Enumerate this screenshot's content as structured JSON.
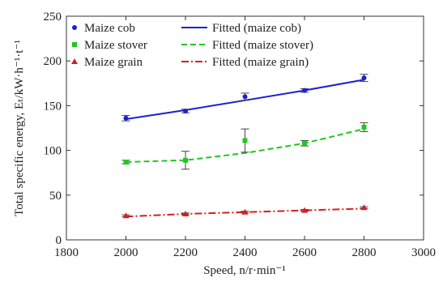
{
  "chart_data": {
    "type": "scatter",
    "xlabel": "Speed, n/r·min⁻¹",
    "ylabel": "Total specific energy, Eₜ/kW·h⁻¹·t⁻¹",
    "xlim": [
      1800,
      3000
    ],
    "ylim": [
      0,
      250
    ],
    "xticks": [
      "1800",
      "2000",
      "2200",
      "2400",
      "2600",
      "2800",
      "3000"
    ],
    "yticks": [
      "0",
      "50",
      "100",
      "150",
      "200",
      "250"
    ],
    "grid": false,
    "legend": "top-left",
    "series": [
      {
        "name": "Maize cob",
        "fit_name": "Fitted (maize cob)",
        "color": "#1f1fd1",
        "marker": "circle",
        "fit_style": "solid",
        "x": [
          2000,
          2200,
          2400,
          2600,
          2800
        ],
        "y": [
          136,
          144,
          160,
          167,
          181
        ],
        "err": [
          3,
          2,
          4,
          2,
          4
        ],
        "fit": [
          135,
          145,
          156,
          167,
          179
        ]
      },
      {
        "name": "Maize stover",
        "fit_name": "Fitted (maize stover)",
        "color": "#1ec81e",
        "marker": "square",
        "fit_style": "dashed",
        "x": [
          2000,
          2200,
          2400,
          2600,
          2800
        ],
        "y": [
          87,
          89,
          111,
          108,
          126
        ],
        "err": [
          2,
          10,
          13,
          3,
          5
        ],
        "fit": [
          87,
          89,
          97,
          108,
          124
        ]
      },
      {
        "name": "Maize grain",
        "fit_name": "Fitted (maize grain)",
        "color": "#d42020",
        "marker": "triangle",
        "fit_style": "dashdot",
        "x": [
          2000,
          2200,
          2400,
          2600,
          2800
        ],
        "y": [
          27,
          29,
          31,
          33,
          36
        ],
        "err": [
          1,
          1,
          1,
          1,
          1
        ],
        "fit": [
          26,
          29,
          31,
          33,
          35
        ]
      }
    ]
  }
}
